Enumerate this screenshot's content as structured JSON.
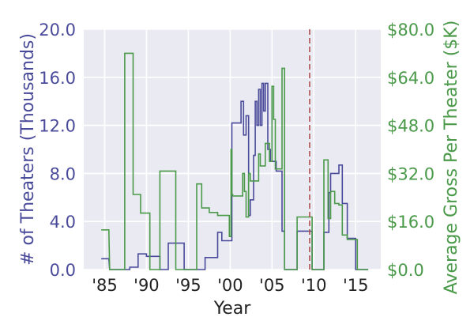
{
  "chart_data": {
    "type": "line",
    "step": true,
    "grid": true,
    "x_axis": {
      "label": "Year",
      "range": [
        1982.5,
        2018.0
      ],
      "ticks": [
        1985,
        1990,
        1995,
        2000,
        2005,
        2010,
        2015
      ],
      "tick_labels": [
        "'85",
        "'90",
        "'95",
        "'00",
        "'05",
        "'10",
        "'15"
      ]
    },
    "y_left": {
      "label": "# of Theaters (Thousands)",
      "range": [
        0,
        20
      ],
      "ticks": [
        0,
        4,
        8,
        12,
        16,
        20
      ],
      "tick_labels": [
        "0.0",
        "4.0",
        "8.0",
        "12.0",
        "16.0",
        "20.0"
      ],
      "color": "#4a4a9a"
    },
    "y_right": {
      "label": "Average Gross Per Theater ($K)",
      "range": [
        0,
        80
      ],
      "ticks": [
        0,
        16,
        32,
        48,
        64,
        80
      ],
      "tick_labels": [
        "$0.0",
        "$16.0",
        "$32.0",
        "$48.0",
        "$64.0",
        "$80.0"
      ],
      "color": "#4a9a4a"
    },
    "reference_line": {
      "x": 2009.5,
      "color": "#b05050",
      "style": "dashed"
    },
    "series": [
      {
        "axis": "left",
        "color": "#4a4a9a",
        "points": [
          [
            1984.6,
            0.9
          ],
          [
            1985.5,
            0.9
          ],
          [
            1985.6,
            0
          ],
          [
            1988.0,
            0
          ],
          [
            1988.0,
            0.2
          ],
          [
            1989.0,
            0.2
          ],
          [
            1989.0,
            1.3
          ],
          [
            1990.0,
            1.3
          ],
          [
            1990.0,
            1.1
          ],
          [
            1991.6,
            1.1
          ],
          [
            1991.6,
            0
          ],
          [
            1992.6,
            0
          ],
          [
            1992.6,
            2.2
          ],
          [
            1994.5,
            2.2
          ],
          [
            1994.5,
            0
          ],
          [
            1997.0,
            0
          ],
          [
            1997.0,
            1.0
          ],
          [
            1998.5,
            1.0
          ],
          [
            1998.5,
            3.1
          ],
          [
            1999.0,
            3.1
          ],
          [
            1999.0,
            2.4
          ],
          [
            2000.2,
            2.4
          ],
          [
            2000.2,
            12.2
          ],
          [
            2001.3,
            12.2
          ],
          [
            2001.3,
            14.0
          ],
          [
            2001.6,
            14.0
          ],
          [
            2001.6,
            11.2
          ],
          [
            2001.9,
            11.2
          ],
          [
            2001.9,
            12.8
          ],
          [
            2002.2,
            12.8
          ],
          [
            2002.2,
            4.5
          ],
          [
            2002.4,
            4.5
          ],
          [
            2002.4,
            5.8
          ],
          [
            2002.8,
            5.8
          ],
          [
            2002.8,
            9.5
          ],
          [
            2003.0,
            9.5
          ],
          [
            2003.0,
            14.0
          ],
          [
            2003.2,
            14.0
          ],
          [
            2003.2,
            12.0
          ],
          [
            2003.4,
            12.0
          ],
          [
            2003.4,
            15.0
          ],
          [
            2003.6,
            15.0
          ],
          [
            2003.6,
            12.0
          ],
          [
            2003.8,
            12.0
          ],
          [
            2003.8,
            15.5
          ],
          [
            2004.0,
            15.5
          ],
          [
            2004.0,
            13.2
          ],
          [
            2004.2,
            13.2
          ],
          [
            2004.2,
            15.5
          ],
          [
            2004.5,
            15.5
          ],
          [
            2004.5,
            10.0
          ],
          [
            2004.8,
            10.0
          ],
          [
            2004.8,
            9.0
          ],
          [
            2005.5,
            9.0
          ],
          [
            2005.5,
            8.2
          ],
          [
            2006.2,
            8.2
          ],
          [
            2006.2,
            3.2
          ],
          [
            2006.5,
            3.2
          ],
          [
            2006.5,
            0
          ],
          [
            2008.0,
            0
          ],
          [
            2008.0,
            3.2
          ],
          [
            2009.8,
            3.2
          ],
          [
            2009.8,
            0
          ],
          [
            2011.2,
            0
          ],
          [
            2011.2,
            3.1
          ],
          [
            2011.8,
            3.1
          ],
          [
            2011.8,
            6.4
          ],
          [
            2012.0,
            6.4
          ],
          [
            2012.0,
            8.0
          ],
          [
            2013.0,
            8.0
          ],
          [
            2013.0,
            8.7
          ],
          [
            2013.4,
            8.7
          ],
          [
            2013.4,
            5.5
          ],
          [
            2014.0,
            5.5
          ],
          [
            2014.0,
            2.6
          ],
          [
            2015.0,
            2.6
          ],
          [
            2015.0,
            0
          ],
          [
            2016.5,
            0
          ]
        ]
      },
      {
        "axis": "right",
        "color": "#4a9a4a",
        "points": [
          [
            1984.6,
            13.2
          ],
          [
            1985.5,
            13.2
          ],
          [
            1985.6,
            0
          ],
          [
            1987.4,
            0
          ],
          [
            1987.4,
            72.0
          ],
          [
            1988.4,
            72.0
          ],
          [
            1988.4,
            25.0
          ],
          [
            1989.3,
            25.0
          ],
          [
            1989.3,
            18.8
          ],
          [
            1990.4,
            18.8
          ],
          [
            1990.4,
            0
          ],
          [
            1991.6,
            0
          ],
          [
            1991.6,
            32.8
          ],
          [
            1993.5,
            32.8
          ],
          [
            1993.5,
            0
          ],
          [
            1996.0,
            0
          ],
          [
            1996.0,
            28.5
          ],
          [
            1996.6,
            28.5
          ],
          [
            1996.6,
            20.5
          ],
          [
            1997.5,
            20.5
          ],
          [
            1997.5,
            19.0
          ],
          [
            1998.5,
            19.0
          ],
          [
            1998.5,
            18.0
          ],
          [
            1999.9,
            18.0
          ],
          [
            1999.9,
            11.0
          ],
          [
            2000.1,
            11.0
          ],
          [
            2000.1,
            40.0
          ],
          [
            2000.2,
            40.0
          ],
          [
            2000.2,
            25.0
          ],
          [
            2000.3,
            25.0
          ],
          [
            2000.3,
            24.5
          ],
          [
            2001.5,
            24.5
          ],
          [
            2001.5,
            32.0
          ],
          [
            2001.7,
            32.0
          ],
          [
            2001.7,
            26.0
          ],
          [
            2001.9,
            26.0
          ],
          [
            2001.9,
            17.5
          ],
          [
            2002.2,
            17.5
          ],
          [
            2002.2,
            32.0
          ],
          [
            2002.4,
            32.0
          ],
          [
            2002.4,
            29.5
          ],
          [
            2003.4,
            29.5
          ],
          [
            2003.4,
            38.5
          ],
          [
            2003.6,
            38.5
          ],
          [
            2003.6,
            34.5
          ],
          [
            2004.2,
            34.5
          ],
          [
            2004.2,
            42.0
          ],
          [
            2004.7,
            42.0
          ],
          [
            2004.7,
            36.0
          ],
          [
            2005.0,
            36.0
          ],
          [
            2005.0,
            61.0
          ],
          [
            2005.2,
            61.0
          ],
          [
            2005.2,
            50.0
          ],
          [
            2005.4,
            50.0
          ],
          [
            2005.4,
            33.5
          ],
          [
            2006.2,
            33.5
          ],
          [
            2006.2,
            67.0
          ],
          [
            2006.5,
            67.0
          ],
          [
            2006.5,
            0
          ],
          [
            2008.0,
            0
          ],
          [
            2008.0,
            17.5
          ],
          [
            2009.8,
            17.5
          ],
          [
            2009.8,
            0
          ],
          [
            2011.2,
            0
          ],
          [
            2011.2,
            36.5
          ],
          [
            2011.7,
            36.5
          ],
          [
            2011.7,
            17.0
          ],
          [
            2012.0,
            17.0
          ],
          [
            2012.0,
            26.0
          ],
          [
            2012.5,
            26.0
          ],
          [
            2012.5,
            22.0
          ],
          [
            2013.0,
            22.0
          ],
          [
            2013.0,
            21.5
          ],
          [
            2013.4,
            21.5
          ],
          [
            2013.4,
            11.5
          ],
          [
            2014.0,
            11.5
          ],
          [
            2014.0,
            10.0
          ],
          [
            2015.2,
            10.0
          ],
          [
            2015.2,
            0
          ],
          [
            2016.5,
            0
          ]
        ]
      }
    ]
  }
}
